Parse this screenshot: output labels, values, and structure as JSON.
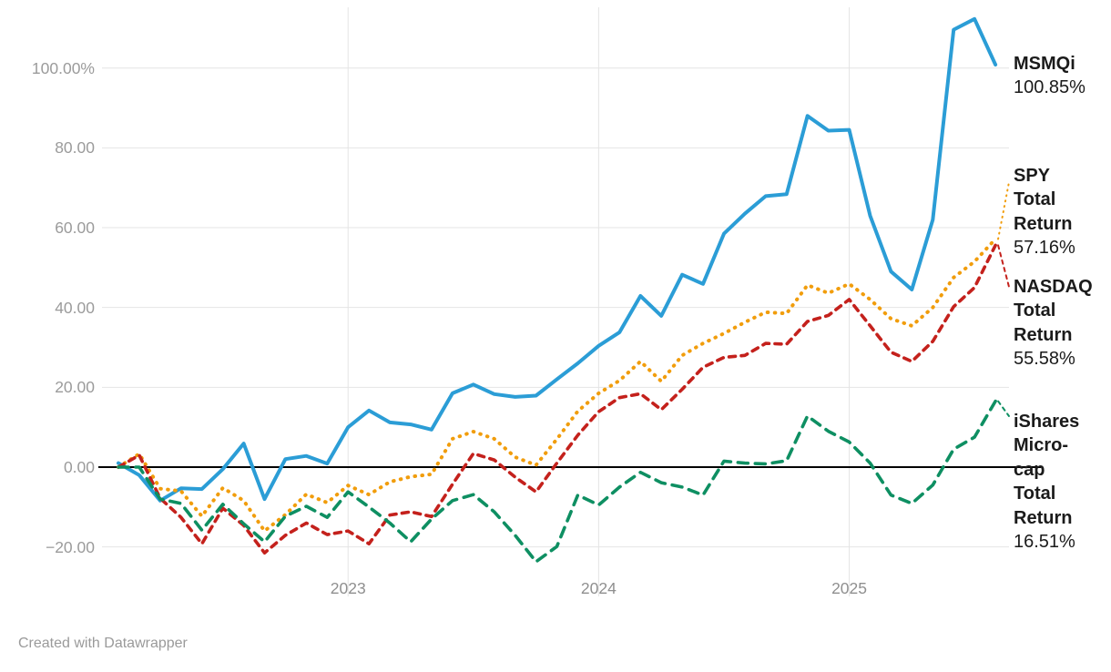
{
  "chart_data": {
    "type": "line",
    "title": "",
    "xlabel": "",
    "ylabel": "",
    "x_unit": "month",
    "x": [
      "2022-02",
      "2022-03",
      "2022-04",
      "2022-05",
      "2022-06",
      "2022-07",
      "2022-08",
      "2022-09",
      "2022-10",
      "2022-11",
      "2022-12",
      "2023-01",
      "2023-02",
      "2023-03",
      "2023-04",
      "2023-05",
      "2023-06",
      "2023-07",
      "2023-08",
      "2023-09",
      "2023-10",
      "2023-11",
      "2023-12",
      "2024-01",
      "2024-02",
      "2024-03",
      "2024-04",
      "2024-05",
      "2024-06",
      "2024-07",
      "2024-08",
      "2024-09",
      "2024-10",
      "2024-11",
      "2024-12",
      "2025-01",
      "2025-02",
      "2025-03",
      "2025-04",
      "2025-05",
      "2025-06",
      "2025-07",
      "2025-08"
    ],
    "ylim": [
      -27,
      116
    ],
    "grid": "both",
    "legend_position": "right-of-line-ends",
    "y_ticks": [
      {
        "label": "100.00%",
        "value": 100
      },
      {
        "label": "80.00",
        "value": 80
      },
      {
        "label": "60.00",
        "value": 60
      },
      {
        "label": "40.00",
        "value": 40
      },
      {
        "label": "20.00",
        "value": 20
      },
      {
        "label": "0.00",
        "value": 0
      },
      {
        "label": "−20.00",
        "value": -20
      }
    ],
    "x_ticks": [
      {
        "label": "2023",
        "month": "2023-01"
      },
      {
        "label": "2024",
        "month": "2024-01"
      },
      {
        "label": "2025",
        "month": "2025-01"
      }
    ],
    "series": [
      {
        "name": "MSMQi",
        "label_name": "MSMQi",
        "label_value": "100.85%",
        "end_value": 100.85,
        "color": "#2b9dd6",
        "style": "solid",
        "values": [
          1,
          -2,
          -8.4,
          -5.3,
          -5.5,
          -0.5,
          5.9,
          -8,
          2,
          2.8,
          0.9,
          10,
          14.2,
          11.2,
          10.7,
          9.4,
          18.5,
          20.7,
          18.3,
          17.6,
          17.9,
          22,
          26,
          30.4,
          33.8,
          42.9,
          37.9,
          48.2,
          45.9,
          58.5,
          63.5,
          67.9,
          68.4,
          88,
          84.3,
          84.5,
          63,
          49,
          44.5,
          62,
          109.6,
          112.3,
          100.85
        ]
      },
      {
        "name": "SPY Total Return",
        "label_name": "SPY Total Return",
        "label_value": "57.16%",
        "end_value": 57.16,
        "color": "#f19d0c",
        "style": "dotted",
        "values": [
          0,
          3.3,
          -5.4,
          -6,
          -12.3,
          -5.2,
          -8.4,
          -16,
          -11.9,
          -6.8,
          -8.9,
          -4.6,
          -6.9,
          -3.7,
          -2.4,
          -1.8,
          7.1,
          8.9,
          7.1,
          2.5,
          0.5,
          7,
          14,
          18.5,
          21.7,
          26.5,
          21.5,
          28,
          31,
          33.5,
          36.3,
          38.8,
          38.5,
          45.6,
          43.6,
          45.9,
          42,
          37.2,
          35.4,
          40,
          47.5,
          51.5,
          57.16
        ]
      },
      {
        "name": "NASDAQ Total Return",
        "label_name": "NASDAQ Total Return",
        "label_value": "55.58%",
        "end_value": 55.58,
        "color": "#c4211c",
        "style": "dashed",
        "values": [
          0,
          3,
          -7.8,
          -12.6,
          -19.2,
          -10.3,
          -14.6,
          -21.5,
          -17.1,
          -14,
          -16.9,
          -16,
          -19.2,
          -12,
          -11.2,
          -12.4,
          -4.3,
          3.4,
          1.8,
          -2.5,
          -6.2,
          1,
          8,
          13.9,
          17.4,
          18.4,
          14.4,
          19.5,
          25,
          27.5,
          28,
          31,
          30.8,
          36.5,
          38,
          42,
          35.4,
          28.8,
          26.5,
          31.5,
          40.2,
          45,
          55.58
        ]
      },
      {
        "name": "iShares Micro-cap Total Return",
        "label_name": "iShares Micro-cap Total Return",
        "label_value": "16.51%",
        "end_value": 16.51,
        "color": "#0e8f62",
        "style": "dashed-long",
        "values": [
          0,
          0,
          -8,
          -9.1,
          -15.8,
          -9.3,
          -14.2,
          -18.7,
          -12.3,
          -9.8,
          -12.6,
          -6.2,
          -10,
          -14,
          -18.7,
          -13,
          -8.4,
          -6.9,
          -11.2,
          -17.1,
          -23.7,
          -19.9,
          -7,
          -9.5,
          -5,
          -1.3,
          -3.9,
          -5,
          -7,
          1.5,
          1,
          0.8,
          1.6,
          12.8,
          9,
          6.3,
          1,
          -7,
          -9.1,
          -4.5,
          4.5,
          7.5,
          16.51
        ]
      }
    ]
  },
  "footer": {
    "attribution": "Created with Datawrapper"
  }
}
